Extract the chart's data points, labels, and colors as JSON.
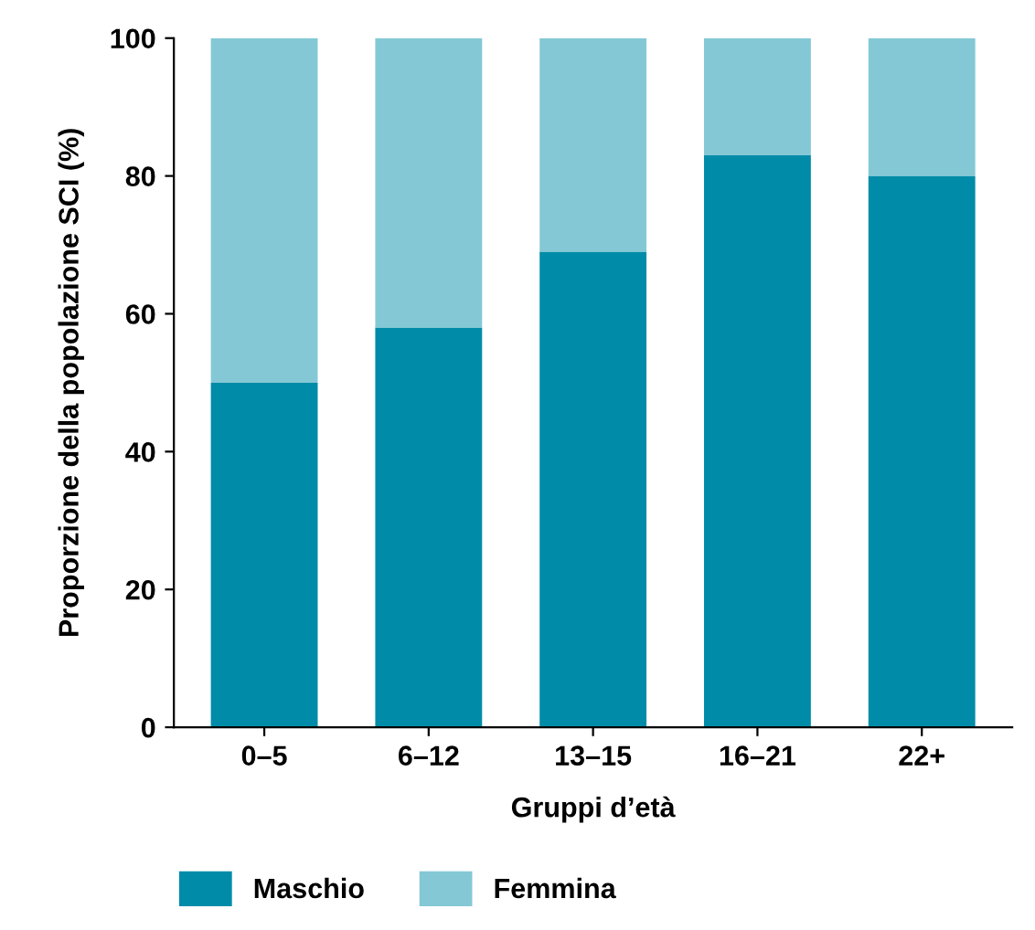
{
  "chart_data": {
    "type": "bar",
    "stacked": true,
    "categories": [
      "0–5",
      "6–12",
      "13–15",
      "16–21",
      "22+"
    ],
    "series": [
      {
        "name": "Maschio",
        "color": "#008ca8",
        "values": [
          50,
          58,
          69,
          83,
          80
        ]
      },
      {
        "name": "Femmina",
        "color": "#84c8d6",
        "values": [
          50,
          42,
          31,
          17,
          20
        ]
      }
    ],
    "xlabel": "Gruppi d’età",
    "ylabel": "Proporzione della popolazione SCI (%)",
    "ylim": [
      0,
      100
    ],
    "yticks": [
      0,
      20,
      40,
      60,
      80,
      100
    ],
    "grid": false,
    "legend": "bottom"
  }
}
